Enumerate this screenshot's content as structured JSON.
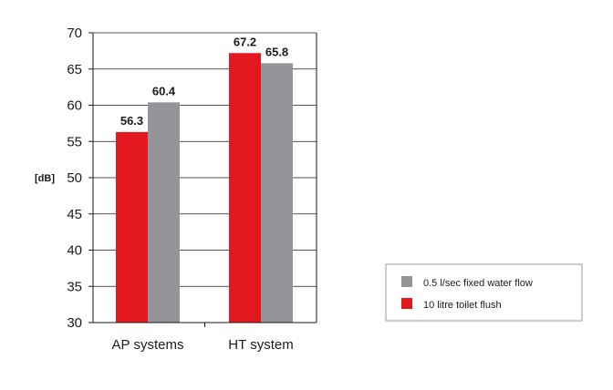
{
  "chart_data": {
    "type": "bar",
    "categories": [
      "AP systems",
      "HT system"
    ],
    "series": [
      {
        "name": "10 litre toilet flush",
        "values": [
          56.3,
          67.2
        ],
        "color": "#e3191f"
      },
      {
        "name": "0.5 l/sec fixed water flow",
        "values": [
          60.4,
          65.8
        ],
        "color": "#939598"
      }
    ],
    "ylabel": "[dB]",
    "xlabel": "",
    "ylim": [
      30,
      70
    ],
    "yticks": [
      30,
      35,
      40,
      45,
      50,
      55,
      60,
      65,
      70
    ],
    "grid": true,
    "legend_order": [
      1,
      0
    ],
    "legend_position": "bottom-right"
  }
}
